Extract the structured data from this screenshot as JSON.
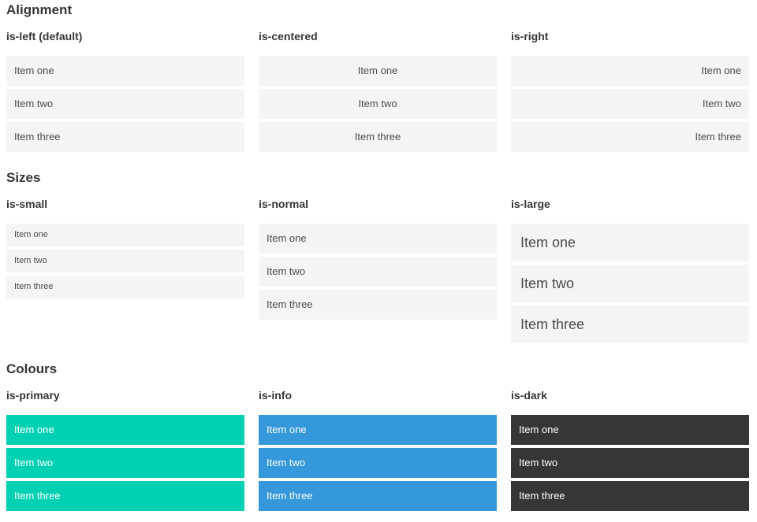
{
  "sections": [
    {
      "title": "Alignment",
      "columns": [
        {
          "subtitle": "is-left (default)",
          "variant": "left",
          "items": [
            "Item one",
            "Item two",
            "Item three"
          ]
        },
        {
          "subtitle": "is-centered",
          "variant": "centered",
          "items": [
            "Item one",
            "Item two",
            "Item three"
          ]
        },
        {
          "subtitle": "is-right",
          "variant": "right",
          "items": [
            "Item one",
            "Item two",
            "Item three"
          ]
        }
      ]
    },
    {
      "title": "Sizes",
      "columns": [
        {
          "subtitle": "is-small",
          "variant": "small",
          "items": [
            "Item one",
            "Item two",
            "Item three"
          ]
        },
        {
          "subtitle": "is-normal",
          "variant": "normal",
          "items": [
            "Item one",
            "Item two",
            "Item three"
          ]
        },
        {
          "subtitle": "is-large",
          "variant": "large",
          "items": [
            "Item one",
            "Item two",
            "Item three"
          ]
        }
      ]
    },
    {
      "title": "Colours",
      "columns": [
        {
          "subtitle": "is-primary",
          "variant": "primary",
          "items": [
            "Item one",
            "Item two",
            "Item three"
          ]
        },
        {
          "subtitle": "is-info",
          "variant": "info",
          "items": [
            "Item one",
            "Item two",
            "Item three"
          ]
        },
        {
          "subtitle": "is-dark",
          "variant": "dark",
          "items": [
            "Item one",
            "Item two",
            "Item three"
          ]
        }
      ]
    }
  ],
  "colors": {
    "primary": "#00d1b2",
    "info": "#3498db",
    "dark": "#363636",
    "item_bg": "#f5f5f5",
    "item_text": "#4a4a4a",
    "heading": "#363636"
  }
}
